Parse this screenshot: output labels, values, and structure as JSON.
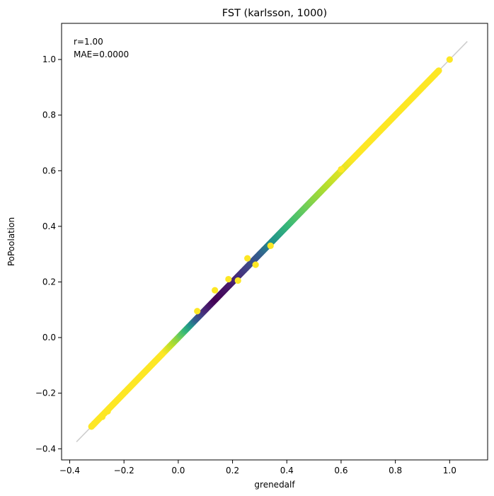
{
  "chart_data": {
    "type": "scatter",
    "title": "FST (karlsson, 1000)",
    "xlabel": "grenedalf",
    "ylabel": "PoPoolation",
    "xlim": [
      -0.43,
      1.14
    ],
    "ylim": [
      -0.44,
      1.13
    ],
    "x_ticks": [
      -0.4,
      -0.2,
      0.0,
      0.2,
      0.4,
      0.6,
      0.8,
      1.0
    ],
    "x_tick_labels": [
      "−0.4",
      "−0.2",
      "0.0",
      "0.2",
      "0.4",
      "0.6",
      "0.8",
      "1.0"
    ],
    "y_ticks": [
      -0.4,
      -0.2,
      0.0,
      0.2,
      0.4,
      0.6,
      0.8,
      1.0
    ],
    "y_tick_labels": [
      "−0.4",
      "−0.2",
      "0.0",
      "0.2",
      "0.4",
      "0.6",
      "0.8",
      "1.0"
    ],
    "grid": false,
    "reference_line": {
      "x": [
        -0.375,
        1.065
      ],
      "y": [
        -0.375,
        1.065
      ],
      "color": "#cccccc"
    },
    "annotations": [
      "r=1.00",
      "MAE=0.0000"
    ],
    "colormap": "viridis",
    "diagonal_density": {
      "range": [
        -0.32,
        0.96
      ],
      "density_stops": [
        {
          "x": -0.32,
          "d": 0.0
        },
        {
          "x": -0.05,
          "d": 0.0
        },
        {
          "x": 0.0,
          "d": 0.2
        },
        {
          "x": 0.05,
          "d": 0.5
        },
        {
          "x": 0.1,
          "d": 0.85
        },
        {
          "x": 0.14,
          "d": 1.0
        },
        {
          "x": 0.2,
          "d": 0.9
        },
        {
          "x": 0.27,
          "d": 0.72
        },
        {
          "x": 0.35,
          "d": 0.5
        },
        {
          "x": 0.42,
          "d": 0.35
        },
        {
          "x": 0.5,
          "d": 0.2
        },
        {
          "x": 0.58,
          "d": 0.08
        },
        {
          "x": 0.65,
          "d": 0.0
        },
        {
          "x": 0.96,
          "d": 0.0
        }
      ]
    },
    "points": [
      {
        "x": -0.31,
        "y": -0.31
      },
      {
        "x": -0.28,
        "y": -0.285
      },
      {
        "x": -0.26,
        "y": -0.265
      },
      {
        "x": 0.07,
        "y": 0.095
      },
      {
        "x": 0.135,
        "y": 0.17
      },
      {
        "x": 0.185,
        "y": 0.21
      },
      {
        "x": 0.22,
        "y": 0.205
      },
      {
        "x": 0.255,
        "y": 0.285
      },
      {
        "x": 0.285,
        "y": 0.262
      },
      {
        "x": 0.34,
        "y": 0.33
      },
      {
        "x": 0.6,
        "y": 0.605
      },
      {
        "x": 0.945,
        "y": 0.945
      },
      {
        "x": 1.0,
        "y": 1.0
      }
    ]
  }
}
